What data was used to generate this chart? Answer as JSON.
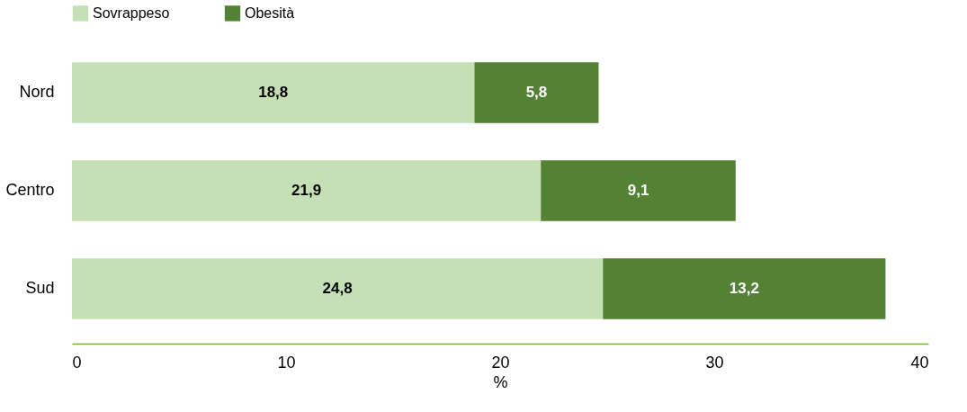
{
  "chart_data": {
    "type": "bar",
    "orientation": "horizontal",
    "stacked": true,
    "categories": [
      "Nord",
      "Centro",
      "Sud"
    ],
    "series": [
      {
        "name": "Sovrappeso",
        "color": "#c5e0b4",
        "values": [
          18.8,
          21.9,
          24.8
        ],
        "value_labels": [
          "18,8",
          "21,9",
          "24,8"
        ]
      },
      {
        "name": "Obesità",
        "color": "#548235",
        "values": [
          5.8,
          9.1,
          13.2
        ],
        "value_labels": [
          "5,8",
          "9,1",
          "13,2"
        ]
      }
    ],
    "xlabel": "%",
    "xlim": [
      0,
      40
    ],
    "xticks": [
      0,
      10,
      20,
      30,
      40
    ],
    "grid": false,
    "legend": "top"
  }
}
